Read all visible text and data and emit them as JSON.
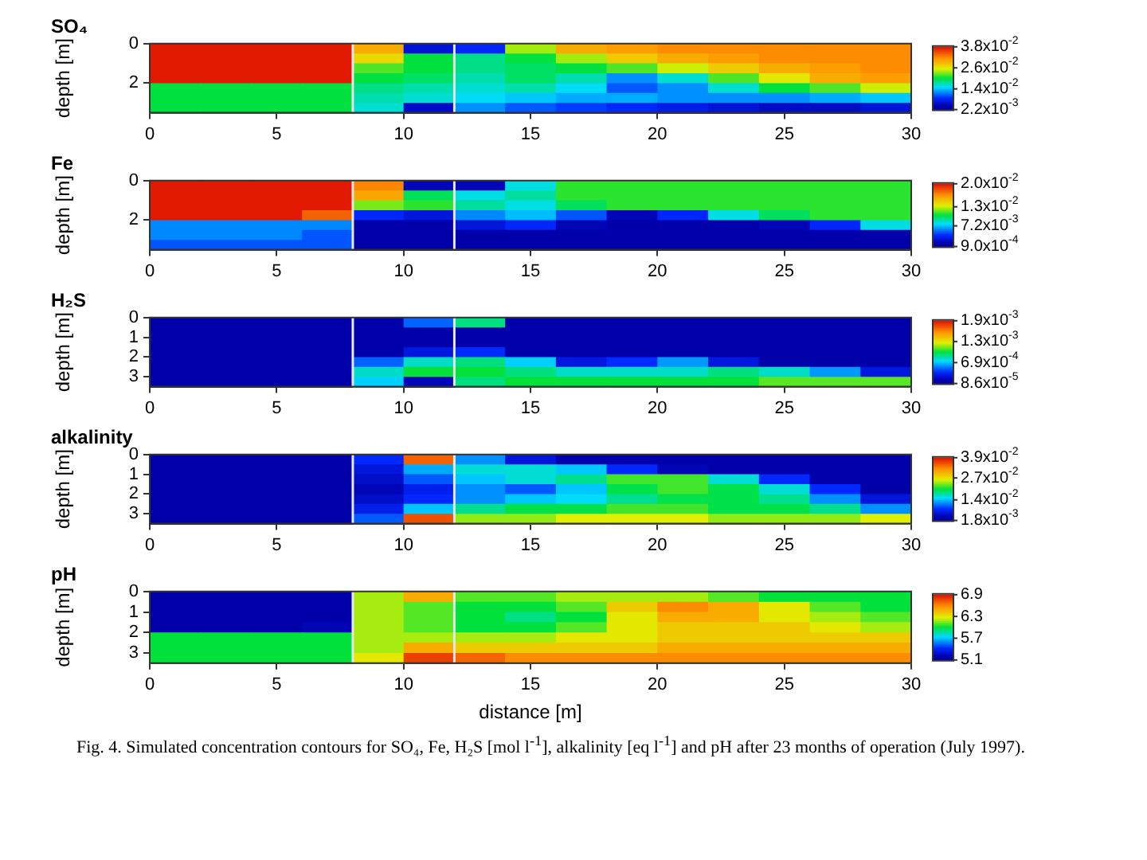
{
  "chart_data": [
    {
      "type": "heatmap",
      "title": "SO₄",
      "ylabel": "depth [m]",
      "xlim": [
        0,
        30
      ],
      "xticks": [
        0,
        5,
        10,
        15,
        20,
        25,
        30
      ],
      "ylim": [
        3.5,
        0
      ],
      "yticks": [
        0,
        2
      ],
      "grid": false,
      "clim": [
        0.0022,
        0.038
      ],
      "cticks": [
        {
          "value": 0.038,
          "label": "3.8x10$^{-2}$"
        },
        {
          "value": 0.026,
          "label": "2.6x10$^{-2}$"
        },
        {
          "value": 0.014,
          "label": "1.4x10$^{-2}$"
        },
        {
          "value": 0.0022,
          "label": "2.2x10$^{-3}$"
        }
      ],
      "ref_lines": [
        {
          "axis": "x",
          "value": 8,
          "color": "#e8e8e8"
        },
        {
          "axis": "x",
          "value": 12,
          "color": "#e8e8e8"
        }
      ],
      "cells": [
        [
          0.038,
          0.038,
          0.038,
          0.038,
          0.03,
          0.006,
          0.008,
          0.024,
          0.03,
          0.031,
          0.032,
          0.032,
          0.032,
          0.032,
          0.032
        ],
        [
          0.038,
          0.038,
          0.038,
          0.038,
          0.027,
          0.02,
          0.018,
          0.02,
          0.024,
          0.028,
          0.03,
          0.031,
          0.032,
          0.032,
          0.032
        ],
        [
          0.038,
          0.038,
          0.038,
          0.038,
          0.022,
          0.02,
          0.018,
          0.019,
          0.02,
          0.022,
          0.025,
          0.028,
          0.03,
          0.031,
          0.032
        ],
        [
          0.038,
          0.038,
          0.038,
          0.038,
          0.02,
          0.019,
          0.017,
          0.019,
          0.017,
          0.012,
          0.016,
          0.022,
          0.026,
          0.03,
          0.031
        ],
        [
          0.02,
          0.02,
          0.02,
          0.02,
          0.018,
          0.017,
          0.016,
          0.017,
          0.015,
          0.01,
          0.012,
          0.016,
          0.02,
          0.022,
          0.025
        ],
        [
          0.02,
          0.02,
          0.02,
          0.02,
          0.017,
          0.016,
          0.015,
          0.014,
          0.013,
          0.013,
          0.012,
          0.012,
          0.012,
          0.013,
          0.014
        ],
        [
          0.02,
          0.02,
          0.02,
          0.02,
          0.016,
          0.005,
          0.012,
          0.01,
          0.009,
          0.008,
          0.007,
          0.006,
          0.005,
          0.005,
          0.006
        ]
      ]
    },
    {
      "type": "heatmap",
      "title": "Fe",
      "ylabel": "depth [m]",
      "xlim": [
        0,
        30
      ],
      "xticks": [
        0,
        5,
        10,
        15,
        20,
        25,
        30
      ],
      "ylim": [
        3.5,
        0
      ],
      "yticks": [
        0,
        2
      ],
      "grid": false,
      "clim": [
        0.0009,
        0.02
      ],
      "cticks": [
        {
          "value": 0.02,
          "label": "2.0x10$^{-2}$"
        },
        {
          "value": 0.013,
          "label": "1.3x10$^{-2}$"
        },
        {
          "value": 0.0072,
          "label": "7.2x10$^{-3}$"
        },
        {
          "value": 0.0009,
          "label": "9.0x10$^{-4}$"
        }
      ],
      "ref_lines": [
        {
          "axis": "x",
          "value": 8,
          "color": "#e8e8e8"
        },
        {
          "axis": "x",
          "value": 12,
          "color": "#e8e8e8"
        }
      ],
      "cells": [
        [
          0.02,
          0.02,
          0.02,
          0.02,
          0.017,
          0.002,
          0.002,
          0.008,
          0.011,
          0.011,
          0.011,
          0.011,
          0.011,
          0.011,
          0.011
        ],
        [
          0.02,
          0.02,
          0.02,
          0.02,
          0.016,
          0.01,
          0.008,
          0.009,
          0.011,
          0.011,
          0.011,
          0.011,
          0.011,
          0.011,
          0.011
        ],
        [
          0.02,
          0.02,
          0.02,
          0.02,
          0.012,
          0.011,
          0.009,
          0.008,
          0.01,
          0.011,
          0.011,
          0.011,
          0.011,
          0.011,
          0.011
        ],
        [
          0.02,
          0.02,
          0.02,
          0.018,
          0.004,
          0.003,
          0.006,
          0.007,
          0.005,
          0.002,
          0.004,
          0.008,
          0.01,
          0.011,
          0.011
        ],
        [
          0.006,
          0.006,
          0.006,
          0.006,
          0.001,
          0.001,
          0.003,
          0.004,
          0.002,
          0.001,
          0.001,
          0.001,
          0.002,
          0.004,
          0.008
        ],
        [
          0.006,
          0.006,
          0.006,
          0.005,
          0.001,
          0.001,
          0.001,
          0.001,
          0.001,
          0.001,
          0.001,
          0.001,
          0.001,
          0.001,
          0.001
        ],
        [
          0.005,
          0.005,
          0.005,
          0.005,
          0.001,
          0.001,
          0.001,
          0.001,
          0.001,
          0.001,
          0.001,
          0.001,
          0.001,
          0.001,
          0.001
        ]
      ]
    },
    {
      "type": "heatmap",
      "title": "H₂S",
      "ylabel": "depth [m]",
      "xlim": [
        0,
        30
      ],
      "xticks": [
        0,
        5,
        10,
        15,
        20,
        25,
        30
      ],
      "ylim": [
        3.5,
        0
      ],
      "yticks": [
        0,
        1,
        2,
        3
      ],
      "grid": false,
      "clim": [
        8.6e-05,
        0.0019
      ],
      "cticks": [
        {
          "value": 0.0019,
          "label": "1.9x10$^{-3}$"
        },
        {
          "value": 0.0013,
          "label": "1.3x10$^{-3}$"
        },
        {
          "value": 0.00069,
          "label": "6.9x10$^{-4}$"
        },
        {
          "value": 8.6e-05,
          "label": "8.6x10$^{-5}$"
        }
      ],
      "ref_lines": [
        {
          "axis": "x",
          "value": 8,
          "color": "#e8e8e8"
        },
        {
          "axis": "x",
          "value": 12,
          "color": "#e8e8e8"
        }
      ],
      "cells": [
        [
          0.0001,
          0.0001,
          0.0001,
          0.0001,
          0.0001,
          0.0005,
          0.0009,
          0.0001,
          0.0001,
          0.0001,
          0.0001,
          0.0001,
          0.0001,
          0.0001,
          0.0001
        ],
        [
          0.0001,
          0.0001,
          0.0001,
          0.0001,
          0.0001,
          0.0001,
          0.0001,
          0.0001,
          0.0001,
          0.0001,
          0.0001,
          0.0001,
          0.0001,
          0.0001,
          0.0001
        ],
        [
          0.0001,
          0.0001,
          0.0001,
          0.0001,
          0.0001,
          0.0001,
          0.0001,
          0.0001,
          0.0001,
          0.0001,
          0.0001,
          0.0001,
          0.0001,
          0.0001,
          0.0001
        ],
        [
          0.0001,
          0.0001,
          0.0001,
          0.0001,
          0.0001,
          0.0003,
          0.0004,
          0.0001,
          0.0001,
          0.0001,
          0.0001,
          0.0001,
          0.0001,
          0.0001,
          0.0001
        ],
        [
          0.0001,
          0.0001,
          0.0001,
          0.0001,
          0.0005,
          0.0008,
          0.0009,
          0.0007,
          0.0003,
          0.0004,
          0.0006,
          0.0003,
          0.0001,
          0.0001,
          0.0001
        ],
        [
          0.0001,
          0.0001,
          0.0001,
          0.0001,
          0.0008,
          0.001,
          0.001,
          0.0009,
          0.0008,
          0.0008,
          0.0008,
          0.0009,
          0.0008,
          0.0006,
          0.0003
        ],
        [
          0.0001,
          0.0001,
          0.0001,
          0.0001,
          0.0007,
          0.0002,
          0.0009,
          0.001,
          0.001,
          0.001,
          0.001,
          0.001,
          0.0011,
          0.0011,
          0.0011
        ]
      ]
    },
    {
      "type": "heatmap",
      "title": "alkalinity",
      "ylabel": "depth [m]",
      "xlim": [
        0,
        30
      ],
      "xticks": [
        0,
        5,
        10,
        15,
        20,
        25,
        30
      ],
      "ylim": [
        3.5,
        0
      ],
      "yticks": [
        0,
        1,
        2,
        3
      ],
      "grid": false,
      "clim": [
        0.0018,
        0.039
      ],
      "cticks": [
        {
          "value": 0.039,
          "label": "3.9x10$^{-2}$"
        },
        {
          "value": 0.027,
          "label": "2.7x10$^{-2}$"
        },
        {
          "value": 0.014,
          "label": "1.4x10$^{-2}$"
        },
        {
          "value": 0.0018,
          "label": "1.8x10$^{-3}$"
        }
      ],
      "ref_lines": [
        {
          "axis": "x",
          "value": 8,
          "color": "#e8e8e8"
        },
        {
          "axis": "x",
          "value": 12,
          "color": "#e8e8e8"
        }
      ],
      "cells": [
        [
          0.002,
          0.002,
          0.002,
          0.002,
          0.008,
          0.035,
          0.012,
          0.006,
          0.003,
          0.002,
          0.002,
          0.002,
          0.002,
          0.002,
          0.002
        ],
        [
          0.002,
          0.002,
          0.002,
          0.002,
          0.006,
          0.013,
          0.016,
          0.016,
          0.014,
          0.008,
          0.004,
          0.002,
          0.002,
          0.002,
          0.002
        ],
        [
          0.002,
          0.002,
          0.002,
          0.002,
          0.005,
          0.01,
          0.014,
          0.016,
          0.018,
          0.022,
          0.022,
          0.016,
          0.008,
          0.003,
          0.002
        ],
        [
          0.002,
          0.002,
          0.002,
          0.002,
          0.004,
          0.007,
          0.012,
          0.01,
          0.014,
          0.02,
          0.022,
          0.02,
          0.016,
          0.008,
          0.003
        ],
        [
          0.002,
          0.002,
          0.002,
          0.002,
          0.005,
          0.008,
          0.012,
          0.014,
          0.015,
          0.018,
          0.02,
          0.02,
          0.018,
          0.012,
          0.006
        ],
        [
          0.002,
          0.002,
          0.002,
          0.002,
          0.007,
          0.014,
          0.018,
          0.02,
          0.02,
          0.022,
          0.022,
          0.02,
          0.02,
          0.018,
          0.012
        ],
        [
          0.002,
          0.002,
          0.002,
          0.002,
          0.01,
          0.036,
          0.024,
          0.024,
          0.026,
          0.026,
          0.026,
          0.024,
          0.024,
          0.024,
          0.026
        ]
      ]
    },
    {
      "type": "heatmap",
      "title": "pH",
      "xlabel": "distance [m]",
      "ylabel": "depth [m]",
      "xlim": [
        0,
        30
      ],
      "xticks": [
        0,
        5,
        10,
        15,
        20,
        25,
        30
      ],
      "ylim": [
        3.5,
        0
      ],
      "yticks": [
        0,
        1,
        2,
        3
      ],
      "grid": false,
      "clim": [
        5.1,
        6.9
      ],
      "cticks": [
        6.9,
        6.3,
        5.7,
        5.1
      ],
      "ref_lines": [
        {
          "axis": "x",
          "value": 8,
          "color": "#e8e8e8"
        },
        {
          "axis": "x",
          "value": 12,
          "color": "#e8e8e8"
        }
      ],
      "annotations": [
        "Fig. 4. Simulated concentration contours for SO₄, Fe, H₂S [mol l$^{-1}$], alkalinity [eq l$^{-1}$] and pH after 23 months of operation (July 1997)."
      ],
      "cells": [
        [
          5.1,
          5.1,
          5.1,
          5.1,
          6.2,
          6.5,
          6.1,
          6.1,
          6.2,
          6.2,
          6.2,
          6.1,
          6.0,
          6.0,
          6.0
        ],
        [
          5.1,
          5.1,
          5.1,
          5.1,
          6.2,
          6.1,
          6.0,
          6.0,
          6.1,
          6.4,
          6.6,
          6.5,
          6.3,
          6.1,
          6.0
        ],
        [
          5.1,
          5.1,
          5.1,
          5.1,
          6.2,
          6.1,
          6.0,
          5.9,
          6.0,
          6.3,
          6.5,
          6.5,
          6.3,
          6.2,
          6.1
        ],
        [
          5.1,
          5.1,
          5.1,
          5.2,
          6.2,
          6.1,
          6.0,
          6.0,
          6.1,
          6.3,
          6.4,
          6.4,
          6.4,
          6.3,
          6.2
        ],
        [
          6.0,
          6.0,
          6.0,
          6.0,
          6.2,
          6.2,
          6.2,
          6.2,
          6.3,
          6.3,
          6.4,
          6.4,
          6.4,
          6.4,
          6.4
        ],
        [
          6.0,
          6.0,
          6.0,
          6.0,
          6.2,
          6.5,
          6.4,
          6.4,
          6.4,
          6.4,
          6.5,
          6.5,
          6.5,
          6.5,
          6.5
        ],
        [
          6.0,
          6.0,
          6.0,
          6.0,
          6.3,
          6.8,
          6.7,
          6.6,
          6.6,
          6.6,
          6.6,
          6.6,
          6.6,
          6.6,
          6.6
        ]
      ]
    }
  ]
}
